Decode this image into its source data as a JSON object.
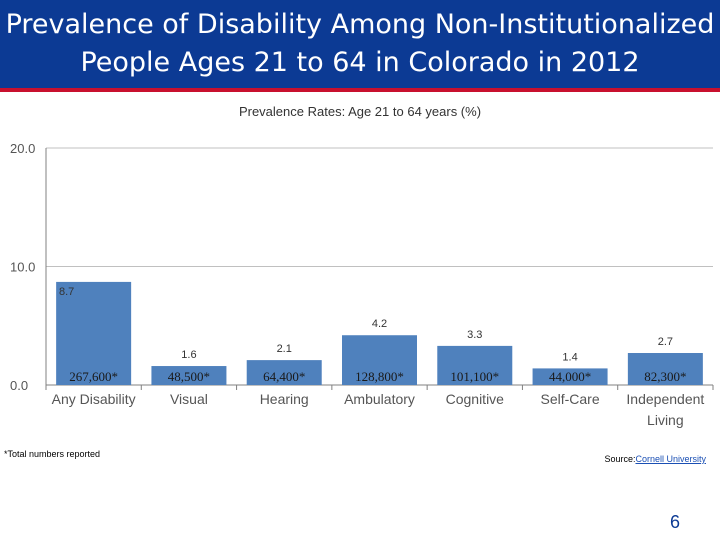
{
  "slide": {
    "title_line1": "Prevalence of Disability Among Non-Institutionalized",
    "title_line2": "People Ages 21 to 64 in Colorado in 2012",
    "footnote": "*Total numbers reported",
    "source_label": "Source:",
    "source_link": "Cornell University",
    "page_number": "6"
  },
  "colors": {
    "title_bg": "#0c3a94",
    "title_rule": "#c8102e",
    "bar": "#4f81bd",
    "grid": "#c0c0c0"
  },
  "chart_data": {
    "type": "bar",
    "title": "Prevalence Rates: Age 21 to 64 years (%)",
    "categories": [
      "Any Disability",
      "Visual",
      "Hearing",
      "Ambulatory",
      "Cognitive",
      "Self-Care",
      "Independent Living"
    ],
    "category_lines": [
      [
        "Any Disability"
      ],
      [
        "Visual"
      ],
      [
        "Hearing"
      ],
      [
        "Ambulatory"
      ],
      [
        "Cognitive"
      ],
      [
        "Self-Care"
      ],
      [
        "Independent",
        "Living"
      ]
    ],
    "values": [
      8.7,
      1.6,
      2.1,
      4.2,
      3.3,
      1.4,
      2.7
    ],
    "value_labels": [
      "8.7",
      "1.6",
      "2.1",
      "4.2",
      "3.3",
      "1.4",
      "2.7"
    ],
    "count_labels": [
      "267,600*",
      "48,500*",
      "64,400*",
      "128,800*",
      "101,100*",
      "44,000*",
      "82,300*"
    ],
    "yticks": [
      0,
      10,
      20
    ],
    "ytick_labels": [
      "0.0",
      "10.0",
      "20.0"
    ],
    "ylim": [
      0,
      20
    ],
    "xlabel": "",
    "ylabel": "",
    "grid": true
  }
}
